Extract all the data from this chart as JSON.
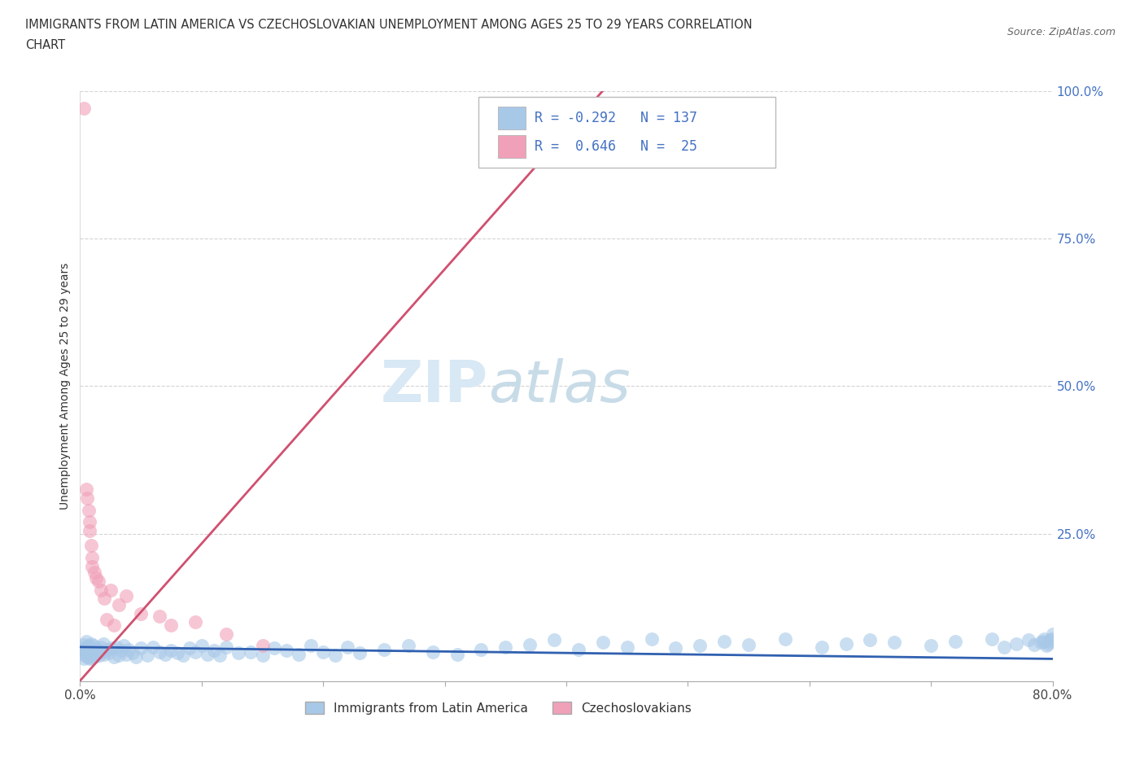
{
  "title_line1": "IMMIGRANTS FROM LATIN AMERICA VS CZECHOSLOVAKIAN UNEMPLOYMENT AMONG AGES 25 TO 29 YEARS CORRELATION",
  "title_line2": "CHART",
  "source_text": "Source: ZipAtlas.com",
  "ylabel": "Unemployment Among Ages 25 to 29 years",
  "xmin": 0.0,
  "xmax": 0.8,
  "ymin": 0.0,
  "ymax": 1.0,
  "blue_color": "#a8c8e8",
  "pink_color": "#f0a0b8",
  "blue_line_color": "#3060b0",
  "pink_line_color": "#d05070",
  "watermark_zip": "ZIP",
  "watermark_atlas": "atlas",
  "grid_color": "#d0d0d0",
  "blue_x": [
    0.001,
    0.002,
    0.003,
    0.003,
    0.004,
    0.004,
    0.005,
    0.005,
    0.006,
    0.006,
    0.007,
    0.007,
    0.008,
    0.008,
    0.009,
    0.009,
    0.01,
    0.01,
    0.011,
    0.012,
    0.013,
    0.014,
    0.015,
    0.016,
    0.017,
    0.018,
    0.019,
    0.02,
    0.022,
    0.024,
    0.026,
    0.028,
    0.03,
    0.032,
    0.034,
    0.036,
    0.038,
    0.04,
    0.043,
    0.046,
    0.05,
    0.055,
    0.06,
    0.065,
    0.07,
    0.075,
    0.08,
    0.085,
    0.09,
    0.095,
    0.1,
    0.105,
    0.11,
    0.115,
    0.12,
    0.13,
    0.14,
    0.15,
    0.16,
    0.17,
    0.18,
    0.19,
    0.2,
    0.21,
    0.22,
    0.23,
    0.25,
    0.27,
    0.29,
    0.31,
    0.33,
    0.35,
    0.37,
    0.39,
    0.41,
    0.43,
    0.45,
    0.47,
    0.49,
    0.51,
    0.53,
    0.55,
    0.58,
    0.61,
    0.63,
    0.65,
    0.67,
    0.7,
    0.72,
    0.75,
    0.76,
    0.77,
    0.78,
    0.785,
    0.79,
    0.792,
    0.793,
    0.795,
    0.796,
    0.797,
    0.798,
    0.799,
    0.8
  ],
  "blue_y": [
    0.048,
    0.052,
    0.038,
    0.062,
    0.044,
    0.056,
    0.05,
    0.068,
    0.042,
    0.058,
    0.046,
    0.06,
    0.052,
    0.038,
    0.064,
    0.04,
    0.046,
    0.054,
    0.06,
    0.042,
    0.056,
    0.048,
    0.052,
    0.044,
    0.058,
    0.05,
    0.064,
    0.046,
    0.054,
    0.048,
    0.056,
    0.042,
    0.058,
    0.044,
    0.052,
    0.06,
    0.046,
    0.054,
    0.048,
    0.042,
    0.056,
    0.044,
    0.058,
    0.05,
    0.046,
    0.052,
    0.048,
    0.044,
    0.056,
    0.05,
    0.06,
    0.046,
    0.052,
    0.044,
    0.058,
    0.048,
    0.05,
    0.044,
    0.056,
    0.052,
    0.046,
    0.06,
    0.05,
    0.044,
    0.058,
    0.048,
    0.054,
    0.06,
    0.05,
    0.046,
    0.054,
    0.058,
    0.062,
    0.07,
    0.054,
    0.066,
    0.058,
    0.072,
    0.056,
    0.06,
    0.068,
    0.062,
    0.072,
    0.058,
    0.064,
    0.07,
    0.066,
    0.06,
    0.068,
    0.072,
    0.058,
    0.064,
    0.07,
    0.062,
    0.066,
    0.068,
    0.072,
    0.06,
    0.064,
    0.068,
    0.07,
    0.072,
    0.08
  ],
  "pink_x": [
    0.003,
    0.005,
    0.006,
    0.007,
    0.008,
    0.008,
    0.009,
    0.01,
    0.01,
    0.012,
    0.013,
    0.015,
    0.017,
    0.02,
    0.022,
    0.025,
    0.028,
    0.032,
    0.038,
    0.05,
    0.065,
    0.075,
    0.095,
    0.12,
    0.15
  ],
  "pink_y": [
    0.97,
    0.325,
    0.31,
    0.29,
    0.27,
    0.255,
    0.23,
    0.21,
    0.195,
    0.185,
    0.175,
    0.17,
    0.155,
    0.14,
    0.105,
    0.155,
    0.095,
    0.13,
    0.145,
    0.115,
    0.11,
    0.095,
    0.1,
    0.08,
    0.06
  ],
  "blue_trend_x": [
    0.0,
    0.8
  ],
  "blue_trend_y": [
    0.058,
    0.038
  ],
  "pink_trend_x": [
    0.0,
    0.43
  ],
  "pink_trend_y": [
    0.001,
    1.0
  ]
}
